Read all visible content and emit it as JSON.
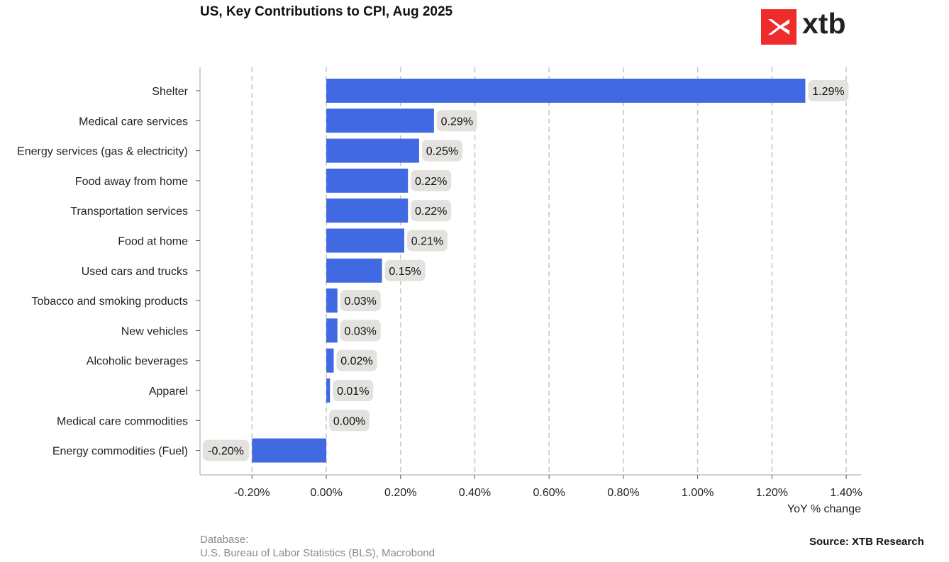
{
  "chart_data": {
    "type": "bar",
    "orientation": "horizontal",
    "title": "US, Key Contributions to CPI, Aug 2025",
    "xlabel": "YoY % change",
    "ylabel": "",
    "categories": [
      "Shelter",
      "Medical care services",
      "Energy services (gas & electricity)",
      "Food away from home",
      "Transportation services",
      "Food at home",
      "Used cars and trucks",
      "Tobacco and smoking products",
      "New vehicles",
      "Alcoholic beverages",
      "Apparel",
      "Medical care commodities",
      "Energy commodities (Fuel)"
    ],
    "values": [
      1.29,
      0.29,
      0.25,
      0.22,
      0.22,
      0.21,
      0.15,
      0.03,
      0.03,
      0.02,
      0.01,
      0.0,
      -0.2
    ],
    "data_labels": [
      "1.29%",
      "0.29%",
      "0.25%",
      "0.22%",
      "0.22%",
      "0.21%",
      "0.15%",
      "0.03%",
      "0.03%",
      "0.02%",
      "0.01%",
      "0.00%",
      "-0.20%"
    ],
    "xlim": [
      -0.34,
      1.44
    ],
    "xticks": [
      -0.2,
      0.0,
      0.2,
      0.4,
      0.6,
      0.8,
      1.0,
      1.2,
      1.4
    ],
    "xtick_labels": [
      "-0.20%",
      "0.00%",
      "0.20%",
      "0.40%",
      "0.60%",
      "0.80%",
      "1.00%",
      "1.20%",
      "1.40%"
    ],
    "grid": "vertical dashed",
    "bar_color": "#4169e1",
    "label_bg_color": "#e4e2df"
  },
  "logo": {
    "text": "xtb",
    "color": "#ee2c2c"
  },
  "footer": {
    "database_label": "Database:",
    "database_value": "U.S. Bureau of Labor Statistics (BLS), Macrobond",
    "source": "Source: XTB Research"
  }
}
